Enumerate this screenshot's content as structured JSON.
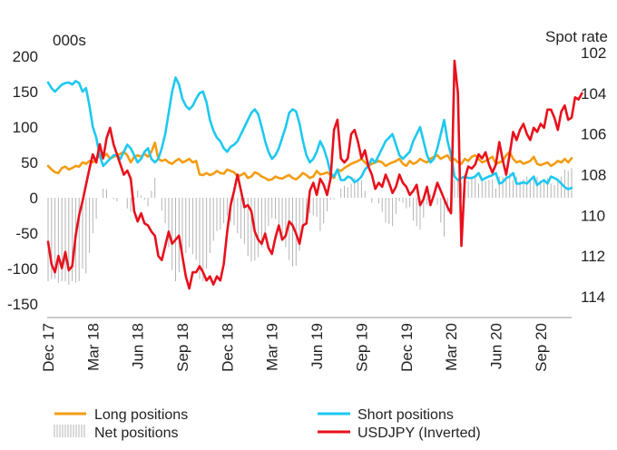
{
  "chart_data": {
    "type": "line",
    "left_axis_unit": "000s",
    "right_axis_title": "Spot rate",
    "ylim_left": [
      -150,
      200
    ],
    "ylim_right": [
      102,
      114
    ],
    "right_axis_inverted": true,
    "yticks_left": [
      "200",
      "150",
      "100",
      "50",
      "0",
      "-50",
      "-100",
      "-150"
    ],
    "yticks_right": [
      "102",
      "104",
      "106",
      "108",
      "110",
      "112",
      "114"
    ],
    "yticks_left_values": [
      200,
      150,
      100,
      50,
      0,
      -50,
      -100,
      -150
    ],
    "yticks_right_values": [
      102,
      104,
      106,
      108,
      110,
      112,
      114
    ],
    "x_ticks": [
      "Dec 17",
      "Mar 18",
      "Jun 18",
      "Sep 18",
      "Dec 18",
      "Mar 19",
      "Jun 19",
      "Sep 19",
      "Dec 19",
      "Mar 20",
      "Jun 20",
      "Sep 20"
    ],
    "x_tick_positions": [
      0,
      13,
      26,
      39,
      52,
      65,
      78,
      91,
      104,
      117,
      130,
      143
    ],
    "x_range": [
      0,
      152
    ],
    "grid": false,
    "legend_position": "bottom",
    "series": [
      {
        "name": "Long positions",
        "color": "#f39c12",
        "axis": "left",
        "values": [
          45,
          40,
          36,
          35,
          42,
          44,
          40,
          42,
          45,
          44,
          50,
          48,
          52,
          50,
          55,
          60,
          58,
          62,
          55,
          58,
          60,
          62,
          65,
          60,
          50,
          58,
          60,
          58,
          62,
          58,
          65,
          78,
          55,
          52,
          54,
          50,
          48,
          52,
          55,
          50,
          52,
          55,
          50,
          52,
          33,
          32,
          35,
          32,
          34,
          38,
          35,
          34,
          40,
          38,
          36,
          30,
          32,
          35,
          28,
          30,
          36,
          34,
          30,
          28,
          25,
          26,
          30,
          28,
          27,
          30,
          32,
          28,
          26,
          30,
          35,
          32,
          28,
          30,
          38,
          33,
          34,
          36,
          32,
          28,
          40,
          38,
          42,
          45,
          48,
          50,
          52,
          55,
          50,
          45,
          48,
          50,
          52,
          50,
          45,
          48,
          50,
          52,
          55,
          48,
          45,
          52,
          48,
          50,
          55,
          52,
          50,
          55,
          58,
          60,
          55,
          58,
          60,
          52,
          55,
          50,
          48,
          55,
          52,
          58,
          60,
          55,
          50,
          52,
          55,
          58,
          48,
          50,
          52,
          60,
          65,
          55,
          50,
          52,
          48,
          50,
          52,
          58,
          48,
          46,
          48,
          50,
          45,
          48,
          52,
          50,
          55,
          50,
          56
        ]
      },
      {
        "name": "Short positions",
        "color": "#1ec8f0",
        "axis": "left",
        "values": [
          163,
          155,
          150,
          155,
          160,
          162,
          163,
          160,
          165,
          162,
          150,
          155,
          130,
          100,
          85,
          60,
          45,
          50,
          55,
          60,
          60,
          55,
          65,
          75,
          70,
          60,
          50,
          55,
          65,
          70,
          55,
          50,
          55,
          70,
          90,
          120,
          150,
          170,
          160,
          140,
          130,
          125,
          130,
          140,
          148,
          150,
          135,
          110,
          95,
          85,
          80,
          70,
          65,
          72,
          75,
          80,
          90,
          100,
          110,
          120,
          125,
          118,
          100,
          80,
          65,
          55,
          60,
          70,
          85,
          100,
          120,
          125,
          122,
          105,
          80,
          60,
          50,
          55,
          65,
          80,
          70,
          55,
          35,
          30,
          40,
          25,
          25,
          30,
          28,
          22,
          25,
          30,
          40,
          45,
          55,
          50,
          60,
          70,
          80,
          85,
          90,
          75,
          60,
          55,
          60,
          65,
          80,
          90,
          100,
          80,
          60,
          50,
          55,
          70,
          90,
          110,
          80,
          60,
          30,
          25,
          28,
          30,
          28,
          28,
          30,
          35,
          25,
          28,
          30,
          32,
          35,
          20,
          22,
          28,
          30,
          35,
          20,
          20,
          22,
          20,
          25,
          30,
          18,
          22,
          25,
          20,
          30,
          28,
          25,
          20,
          15,
          12,
          14
        ]
      },
      {
        "name": "Net positions",
        "color": "#b4b4b4",
        "axis": "left",
        "values": [
          -118,
          -115,
          -114,
          -120,
          -118,
          -118,
          -123,
          -118,
          -120,
          -118,
          -100,
          -107,
          -78,
          -50,
          -30,
          0,
          13,
          12,
          0,
          -2,
          -5,
          0,
          0,
          -15,
          -20,
          -2,
          10,
          3,
          -3,
          -12,
          10,
          28,
          0,
          -18,
          -36,
          -70,
          -102,
          -118,
          -105,
          -90,
          -78,
          -70,
          -80,
          -88,
          -115,
          -118,
          -100,
          -78,
          -61,
          -47,
          -45,
          -36,
          -25,
          -34,
          -39,
          -50,
          -58,
          -65,
          -82,
          -90,
          -89,
          -84,
          -70,
          -52,
          -40,
          -29,
          -30,
          -42,
          -58,
          -70,
          -88,
          -97,
          -96,
          -75,
          -45,
          -28,
          -22,
          -25,
          -27,
          -47,
          -36,
          -19,
          -3,
          -2,
          0,
          13,
          17,
          15,
          20,
          28,
          27,
          25,
          10,
          0,
          -7,
          0,
          -8,
          -20,
          -35,
          -37,
          -40,
          -23,
          -5,
          -7,
          -15,
          -13,
          -32,
          -40,
          -45,
          -28,
          -10,
          5,
          3,
          -10,
          -35,
          -55,
          -20,
          -8,
          25,
          25,
          20,
          25,
          24,
          30,
          30,
          20,
          25,
          24,
          25,
          26,
          13,
          30,
          30,
          32,
          35,
          25,
          30,
          24,
          26,
          30,
          27,
          28,
          30,
          24,
          23,
          28,
          20,
          18,
          27,
          30,
          40,
          38,
          42
        ]
      },
      {
        "name": "USDJPY (Inverted)",
        "color": "#e8101c",
        "axis": "right",
        "values": [
          111.3,
          112.4,
          112.8,
          112.0,
          112.6,
          111.8,
          112.7,
          112.5,
          111.0,
          110.0,
          109.3,
          108.5,
          107.7,
          107.0,
          107.4,
          106.5,
          107.2,
          106.2,
          105.7,
          106.5,
          107.0,
          107.5,
          108.0,
          107.8,
          108.2,
          109.8,
          110.3,
          109.9,
          110.4,
          110.5,
          110.8,
          111.0,
          112.0,
          112.2,
          111.5,
          110.8,
          111.4,
          111.2,
          111.0,
          112.0,
          113.0,
          113.6,
          112.8,
          112.8,
          112.5,
          112.8,
          113.2,
          113.0,
          113.4,
          113.0,
          113.2,
          112.4,
          110.8,
          109.5,
          108.8,
          108.0,
          108.8,
          109.6,
          109.5,
          109.8,
          110.8,
          111.2,
          111.4,
          110.9,
          111.6,
          111.9,
          111.1,
          110.5,
          111.2,
          111.0,
          110.3,
          110.5,
          110.9,
          111.4,
          110.5,
          110.4,
          108.8,
          108.4,
          109.0,
          108.2,
          108.5,
          109.0,
          108.2,
          105.8,
          105.3,
          107.2,
          107.4,
          107.2,
          106.0,
          105.8,
          106.4,
          107.2,
          106.8,
          107.6,
          108.0,
          108.7,
          108.4,
          108.6,
          108.0,
          108.4,
          108.9,
          108.6,
          108.0,
          108.4,
          108.6,
          109.0,
          108.8,
          108.5,
          109.5,
          109.2,
          108.6,
          109.5,
          109.0,
          108.4,
          108.8,
          109.2,
          109.6,
          109.9,
          102.4,
          104.0,
          111.5,
          108.2,
          107.6,
          107.7,
          107.5,
          107.0,
          107.2,
          106.9,
          107.5,
          107.9,
          107.5,
          106.4,
          107.3,
          108.0,
          107.0,
          105.9,
          106.3,
          105.8,
          105.5,
          106.0,
          106.3,
          105.7,
          105.9,
          105.5,
          105.7,
          104.8,
          104.8,
          105.2,
          105.8,
          104.9,
          104.6,
          105.3,
          105.2,
          104.2,
          104.3,
          104.0
        ]
      }
    ]
  },
  "legend": [
    {
      "label": "Long positions",
      "swatch": "line",
      "color": "#f39c12"
    },
    {
      "label": "Short positions",
      "swatch": "line",
      "color": "#1ec8f0"
    },
    {
      "label": "Net positions",
      "swatch": "bars",
      "color": "#b4b4b4"
    },
    {
      "label": "USDJPY (Inverted)",
      "swatch": "line",
      "color": "#e8101c"
    }
  ]
}
